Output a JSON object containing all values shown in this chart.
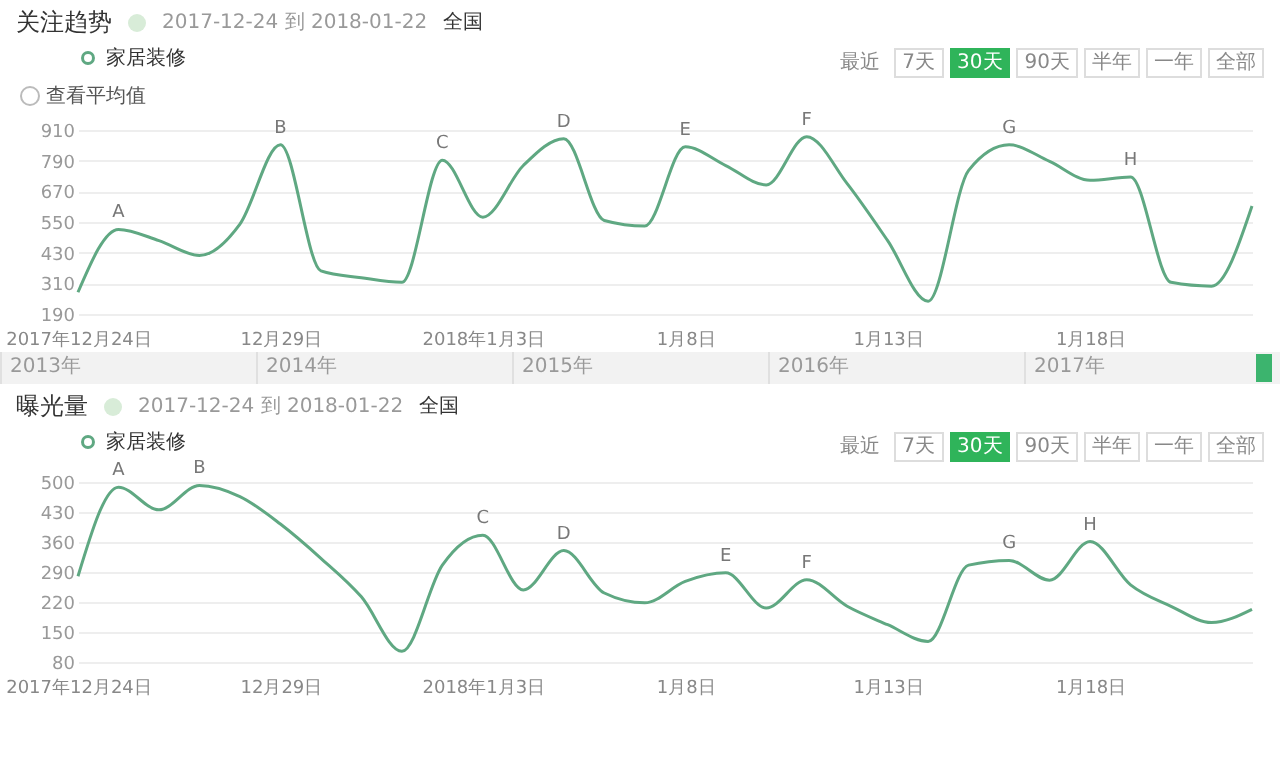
{
  "chart_data": [
    {
      "type": "line",
      "title": "关注趋势",
      "subtitle": "2017-12-24 到 2018-01-22",
      "x": [
        "2017-12-24",
        "2017-12-25",
        "2017-12-26",
        "2017-12-27",
        "2017-12-28",
        "2017-12-29",
        "2017-12-30",
        "2017-12-31",
        "2018-01-01",
        "2018-01-02",
        "2018-01-03",
        "2018-01-04",
        "2018-01-05",
        "2018-01-06",
        "2018-01-07",
        "2018-01-08",
        "2018-01-09",
        "2018-01-10",
        "2018-01-11",
        "2018-01-12",
        "2018-01-13",
        "2018-01-14",
        "2018-01-15",
        "2018-01-16",
        "2018-01-17",
        "2018-01-18",
        "2018-01-19",
        "2018-01-20",
        "2018-01-21",
        "2018-01-22"
      ],
      "series": [
        {
          "name": "家居装修",
          "color": "#5fa882",
          "values": [
            275,
            521,
            477,
            419,
            542,
            852,
            359,
            332,
            314,
            792,
            569,
            771,
            876,
            556,
            534,
            844,
            771,
            695,
            884,
            700,
            477,
            240,
            752,
            852,
            787,
            713,
            726,
            314,
            299,
            613
          ]
        }
      ],
      "xlim": [
        "2017-12-24",
        "2018-01-22"
      ],
      "xticks": [
        {
          "value": "2017-12-24",
          "label": "2017年12月24日"
        },
        {
          "value": "2017-12-29",
          "label": "12月29日"
        },
        {
          "value": "2018-01-03",
          "label": "2018年1月3日"
        },
        {
          "value": "2018-01-08",
          "label": "1月8日"
        },
        {
          "value": "2018-01-13",
          "label": "1月13日"
        },
        {
          "value": "2018-01-18",
          "label": "1月18日"
        }
      ],
      "ylim": [
        190,
        910
      ],
      "yticks": [
        190,
        310,
        430,
        550,
        670,
        790,
        910
      ],
      "grid": "y",
      "legend": "top left",
      "marker": "none",
      "line_style": "solid",
      "annotations": [
        "全国",
        "查看平均值",
        "最近",
        "7天",
        "30天",
        "90天",
        "半年",
        "一年",
        "全部",
        "2013年",
        "2014年",
        "2015年",
        "2016年",
        "2017年",
        {
          "text": "A",
          "x": "2017-12-25",
          "y": 521
        },
        {
          "text": "B",
          "x": "2017-12-29",
          "y": 852
        },
        {
          "text": "C",
          "x": "2018-01-02",
          "y": 792
        },
        {
          "text": "D",
          "x": "2018-01-05",
          "y": 876
        },
        {
          "text": "E",
          "x": "2018-01-08",
          "y": 844
        },
        {
          "text": "F",
          "x": "2018-01-11",
          "y": 884
        },
        {
          "text": "G",
          "x": "2018-01-16",
          "y": 852
        },
        {
          "text": "H",
          "x": "2018-01-19",
          "y": 726
        }
      ]
    },
    {
      "type": "line",
      "title": "曝光量",
      "subtitle": "2017-12-24 到 2018-01-22",
      "x": [
        "2017-12-24",
        "2017-12-25",
        "2017-12-26",
        "2017-12-27",
        "2017-12-28",
        "2017-12-29",
        "2017-12-30",
        "2017-12-31",
        "2018-01-01",
        "2018-01-02",
        "2018-01-03",
        "2018-01-04",
        "2018-01-05",
        "2018-01-06",
        "2018-01-07",
        "2018-01-08",
        "2018-01-09",
        "2018-01-10",
        "2018-01-11",
        "2018-01-12",
        "2018-01-13",
        "2018-01-14",
        "2018-01-15",
        "2018-01-16",
        "2018-01-17",
        "2018-01-18",
        "2018-01-19",
        "2018-01-20",
        "2018-01-21",
        "2018-01-22"
      ],
      "series": [
        {
          "name": "家居装修",
          "color": "#5fa882",
          "values": [
            280,
            488,
            435,
            492,
            466,
            402,
            322,
            232,
            105,
            306,
            376,
            248,
            340,
            241,
            218,
            268,
            288,
            206,
            272,
            210,
            167,
            128,
            306,
            317,
            271,
            361,
            260,
            210,
            172,
            203
          ]
        }
      ],
      "xlim": [
        "2017-12-24",
        "2018-01-22"
      ],
      "xticks": [
        {
          "value": "2017-12-24",
          "label": "2017年12月24日"
        },
        {
          "value": "2017-12-29",
          "label": "12月29日"
        },
        {
          "value": "2018-01-03",
          "label": "2018年1月3日"
        },
        {
          "value": "2018-01-08",
          "label": "1月8日"
        },
        {
          "value": "2018-01-13",
          "label": "1月13日"
        },
        {
          "value": "2018-01-18",
          "label": "1月18日"
        }
      ],
      "ylim": [
        80,
        500
      ],
      "yticks": [
        80,
        150,
        220,
        290,
        360,
        430,
        500
      ],
      "grid": "y",
      "legend": "top left",
      "marker": "none",
      "line_style": "solid",
      "annotations": [
        "全国",
        "最近",
        "7天",
        "30天",
        "90天",
        "半年",
        "一年",
        "全部",
        {
          "text": "A",
          "x": "2017-12-25",
          "y": 488
        },
        {
          "text": "B",
          "x": "2017-12-27",
          "y": 492
        },
        {
          "text": "C",
          "x": "2018-01-03",
          "y": 376
        },
        {
          "text": "D",
          "x": "2018-01-05",
          "y": 340
        },
        {
          "text": "E",
          "x": "2018-01-09",
          "y": 288
        },
        {
          "text": "F",
          "x": "2018-01-11",
          "y": 272
        },
        {
          "text": "G",
          "x": "2018-01-16",
          "y": 317
        },
        {
          "text": "H",
          "x": "2018-01-18",
          "y": 361
        }
      ]
    }
  ]
}
